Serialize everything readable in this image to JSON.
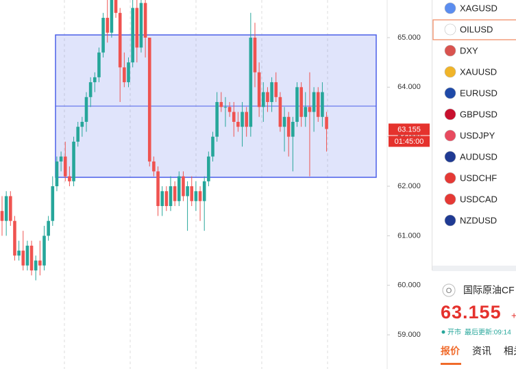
{
  "chart_data": {
    "type": "candlestick",
    "up_color": "#26a69a",
    "down_color": "#ef5350",
    "open": [
      61.5,
      61.3,
      61.8,
      61.3,
      60.6,
      60.7,
      60.4,
      60.8,
      60.3,
      60.5,
      60.4,
      61.0,
      61.3,
      62.0,
      62.5,
      62.6,
      62.2,
      62.1,
      62.9,
      63.2,
      63.3,
      63.8,
      64.1,
      64.2,
      64.7,
      65.4,
      65.1,
      65.9,
      65.5,
      64.4,
      64.1,
      64.5,
      65.6,
      64.8,
      65.7,
      65.0,
      62.5,
      62.3,
      61.6,
      61.9,
      61.6,
      62.0,
      61.7,
      62.2,
      61.8,
      62.0,
      61.7,
      61.9,
      61.7,
      62.1,
      62.6,
      63.0,
      63.7,
      63.6,
      63.6,
      63.5,
      63.3,
      63.2,
      63.5,
      63.2,
      65.0,
      64.3,
      63.6,
      63.9,
      63.7,
      64.1,
      63.8,
      63.2,
      63.4,
      63.0,
      63.3,
      64.0,
      63.4,
      63.6,
      63.5,
      63.9,
      63.4,
      63.4
    ],
    "high": [
      61.8,
      61.9,
      61.9,
      61.4,
      60.9,
      61.1,
      60.9,
      60.9,
      60.6,
      60.9,
      61.2,
      61.4,
      62.2,
      62.6,
      62.7,
      62.9,
      62.4,
      63.0,
      63.3,
      63.4,
      63.9,
      64.2,
      64.3,
      64.8,
      65.5,
      66.2,
      66.0,
      66.0,
      65.6,
      64.7,
      64.6,
      65.9,
      65.8,
      65.9,
      65.8,
      65.0,
      62.6,
      62.4,
      62.0,
      62.0,
      62.2,
      62.1,
      62.3,
      62.3,
      62.1,
      62.2,
      62.1,
      62.0,
      62.2,
      62.7,
      63.1,
      63.9,
      63.9,
      63.8,
      63.7,
      63.7,
      63.5,
      63.7,
      63.6,
      65.5,
      65.3,
      64.5,
      64.1,
      64.0,
      64.2,
      64.3,
      63.9,
      63.6,
      63.5,
      63.4,
      64.1,
      64.1,
      63.9,
      64.3,
      64.0,
      64.0,
      64.1,
      63.5
    ],
    "low": [
      61.0,
      61.0,
      61.2,
      60.5,
      60.5,
      60.3,
      60.3,
      60.2,
      60.1,
      60.2,
      60.3,
      60.9,
      61.2,
      61.9,
      62.3,
      62.1,
      62.0,
      62.0,
      62.8,
      63.0,
      63.1,
      63.6,
      63.9,
      64.1,
      64.6,
      64.9,
      65.0,
      65.4,
      63.7,
      64.0,
      64.0,
      64.4,
      64.5,
      64.7,
      64.6,
      62.4,
      62.2,
      61.4,
      61.4,
      61.5,
      61.5,
      61.6,
      61.6,
      61.7,
      61.1,
      61.6,
      61.5,
      61.3,
      61.1,
      62.0,
      62.5,
      62.9,
      63.5,
      63.2,
      63.4,
      63.0,
      63.1,
      62.8,
      63.0,
      63.0,
      64.0,
      63.4,
      63.3,
      63.5,
      63.5,
      63.7,
      63.1,
      62.7,
      62.6,
      62.3,
      63.2,
      63.2,
      63.2,
      62.2,
      63.1,
      63.3,
      63.2,
      62.7
    ],
    "close": [
      61.3,
      61.8,
      61.3,
      60.6,
      60.7,
      60.4,
      60.8,
      60.3,
      60.5,
      60.4,
      61.0,
      61.3,
      62.0,
      62.5,
      62.6,
      62.2,
      62.1,
      62.9,
      63.2,
      63.3,
      63.8,
      64.1,
      64.2,
      64.7,
      65.4,
      65.1,
      65.9,
      65.5,
      64.4,
      64.1,
      64.5,
      65.6,
      64.8,
      65.7,
      65.0,
      62.5,
      62.3,
      61.6,
      61.9,
      61.6,
      62.0,
      61.7,
      62.2,
      61.8,
      62.0,
      61.7,
      61.9,
      61.7,
      62.1,
      62.6,
      63.0,
      63.7,
      63.6,
      63.6,
      63.5,
      63.3,
      63.2,
      63.5,
      63.2,
      65.0,
      64.3,
      63.6,
      63.9,
      63.7,
      64.1,
      63.8,
      63.2,
      63.4,
      63.0,
      63.3,
      64.0,
      63.4,
      63.6,
      63.5,
      63.9,
      63.4,
      63.9,
      63.155
    ],
    "ylim": [
      58.31,
      65.76
    ],
    "yticks": [
      {
        "value": 59,
        "label": "59.000"
      },
      {
        "value": 60,
        "label": "60.000"
      },
      {
        "value": 61,
        "label": "61.000"
      },
      {
        "value": 62,
        "label": "62.000"
      },
      {
        "value": 63,
        "label": "63.000"
      },
      {
        "value": 64,
        "label": "64.000"
      },
      {
        "value": 65,
        "label": "65.000"
      }
    ],
    "range_box": {
      "top": 65.055,
      "bottom": 62.18,
      "color": "#4a5ee8"
    },
    "last_price": 63.155,
    "countdown": "01:45:00"
  },
  "watchlist": {
    "selected": 1,
    "items": [
      {
        "symbol": "XAGUSD",
        "icon": "#5b8def"
      },
      {
        "symbol": "OILUSD",
        "icon": "#ffffff"
      },
      {
        "symbol": "DXY",
        "icon": "#d9534f"
      },
      {
        "symbol": "XAUUSD",
        "icon": "#f0b429"
      },
      {
        "symbol": "EURUSD",
        "icon": "#1f4aa8"
      },
      {
        "symbol": "GBPUSD",
        "icon": "#c8102e"
      },
      {
        "symbol": "USDJPY",
        "icon": "#e84a5f"
      },
      {
        "symbol": "AUDUSD",
        "icon": "#1f3a93"
      },
      {
        "symbol": "USDCHF",
        "icon": "#e53935"
      },
      {
        "symbol": "USDCAD",
        "icon": "#e53935"
      },
      {
        "symbol": "NZDUSD",
        "icon": "#1f3a93"
      }
    ]
  },
  "quote_panel": {
    "icon": "O",
    "name": "国际原油CF",
    "price": "63.155",
    "change": "+",
    "status": "开市",
    "updated": "最后更新:09:14",
    "tabs": [
      "报价",
      "资讯",
      "相关"
    ]
  }
}
